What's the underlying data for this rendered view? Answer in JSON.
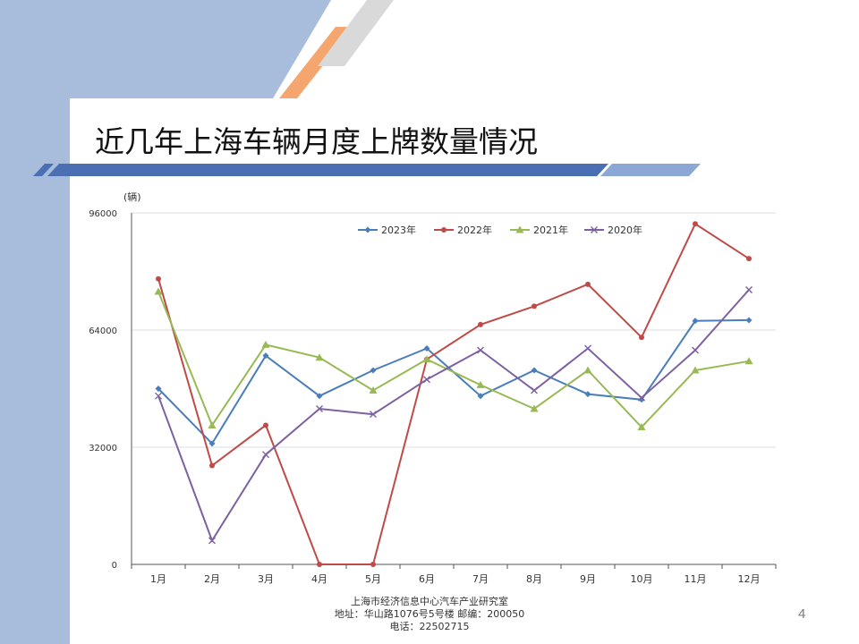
{
  "slide": {
    "title": "近几年上海车辆月度上牌数量情况",
    "page_number": "4",
    "footer": {
      "line1": "上海市经济信息中心汽车产业研究室",
      "line2": "地址：华山路1076号5号楼   邮编：200050",
      "line3": "电话：22502715"
    }
  },
  "chart_data": {
    "type": "line",
    "unit_label": "(辆)",
    "categories": [
      "1月",
      "2月",
      "3月",
      "4月",
      "5月",
      "6月",
      "7月",
      "8月",
      "9月",
      "10月",
      "11月",
      "12月"
    ],
    "ylim": [
      0,
      96000
    ],
    "yticks": [
      0,
      32000,
      64000,
      96000
    ],
    "ytick_labels": [
      "0",
      "32000",
      "64000",
      "96000"
    ],
    "grid": true,
    "legend_position": "top",
    "series": [
      {
        "name": "2023年",
        "color": "#4a7ebb",
        "marker": "diamond",
        "values": [
          48000,
          33000,
          57000,
          46000,
          53000,
          59000,
          46000,
          53000,
          46500,
          45000,
          66500,
          66700
        ]
      },
      {
        "name": "2022年",
        "color": "#be4b48",
        "marker": "circle",
        "values": [
          78000,
          27000,
          38000,
          0,
          0,
          56000,
          65500,
          70500,
          76500,
          62000,
          93000,
          83500
        ]
      },
      {
        "name": "2021年",
        "color": "#98b954",
        "marker": "triangle",
        "values": [
          74500,
          38000,
          60000,
          56500,
          47500,
          56000,
          49000,
          42500,
          53000,
          37500,
          53000,
          55500
        ]
      },
      {
        "name": "2020年",
        "color": "#7d60a0",
        "marker": "x",
        "values": [
          46000,
          6500,
          30000,
          42500,
          41000,
          50500,
          58500,
          47500,
          59000,
          45500,
          58500,
          75000
        ]
      }
    ]
  }
}
